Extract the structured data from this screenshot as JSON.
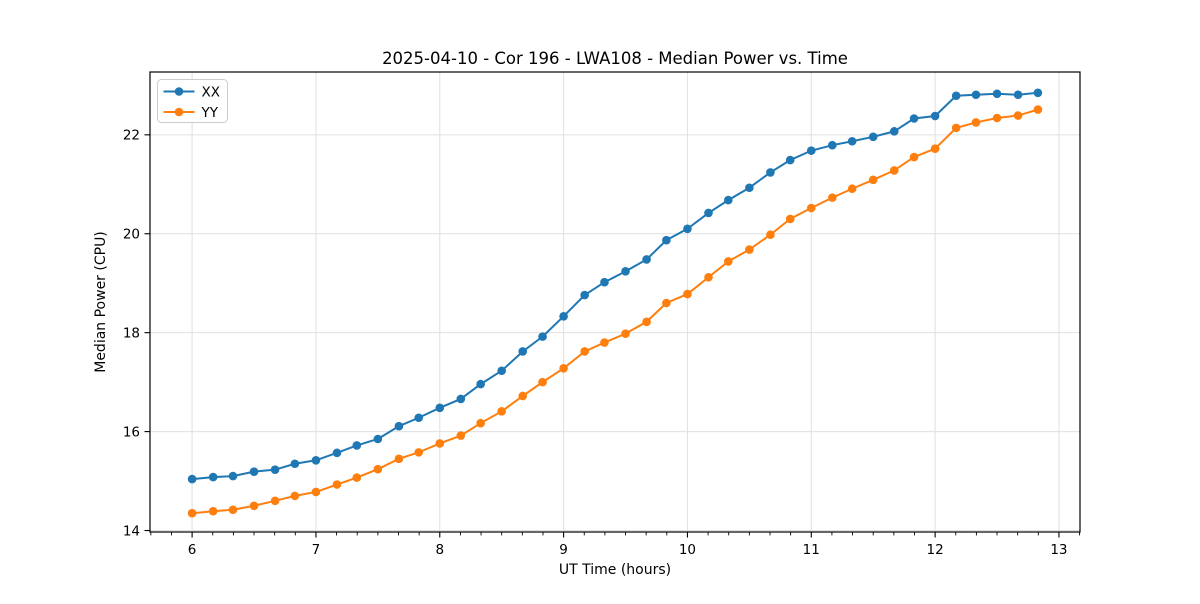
{
  "figure": {
    "background": "#ffffff"
  },
  "chart_data": {
    "type": "line",
    "title": "2025-04-10 - Cor 196 - LWA108 - Median Power vs. Time",
    "xlabel": "UT Time (hours)",
    "ylabel": "Median Power (CPU)",
    "xlim": [
      5.66,
      13.17
    ],
    "ylim": [
      13.97,
      23.27
    ],
    "x_ticks": [
      6,
      7,
      8,
      9,
      10,
      11,
      12,
      13
    ],
    "y_ticks": [
      14,
      16,
      18,
      20,
      22
    ],
    "x_minor_divisions": 6,
    "grid": true,
    "grid_color": "#e0e0e0",
    "spine_color": "#000000",
    "legend_position": "upper-left",
    "legend_border_color": "#cccccc",
    "marker": "circle",
    "x": [
      6.0,
      6.17,
      6.33,
      6.5,
      6.67,
      6.83,
      7.0,
      7.17,
      7.33,
      7.5,
      7.67,
      7.83,
      8.0,
      8.17,
      8.33,
      8.5,
      8.67,
      8.83,
      9.0,
      9.17,
      9.33,
      9.5,
      9.67,
      9.83,
      10.0,
      10.17,
      10.33,
      10.5,
      10.67,
      10.83,
      11.0,
      11.17,
      11.33,
      11.5,
      11.67,
      11.83,
      12.0,
      12.17,
      12.33,
      12.5,
      12.67,
      12.83
    ],
    "series": [
      {
        "name": "XX",
        "color": "#1f77b4",
        "values": [
          15.04,
          15.08,
          15.1,
          15.19,
          15.23,
          15.35,
          15.42,
          15.57,
          15.72,
          15.85,
          16.11,
          16.28,
          16.48,
          16.66,
          16.96,
          17.23,
          17.62,
          17.92,
          18.33,
          18.76,
          19.02,
          19.24,
          19.48,
          19.87,
          20.1,
          20.42,
          20.68,
          20.93,
          21.24,
          21.49,
          21.68,
          21.79,
          21.87,
          21.96,
          22.07,
          22.33,
          22.38,
          22.79,
          22.81,
          22.83,
          22.81,
          22.85
        ]
      },
      {
        "name": "YY",
        "color": "#ff7f0e",
        "values": [
          14.35,
          14.39,
          14.42,
          14.5,
          14.6,
          14.7,
          14.78,
          14.93,
          15.07,
          15.24,
          15.45,
          15.58,
          15.76,
          15.92,
          16.17,
          16.41,
          16.72,
          17.0,
          17.28,
          17.62,
          17.8,
          17.98,
          18.22,
          18.6,
          18.78,
          19.12,
          19.44,
          19.68,
          19.98,
          20.3,
          20.52,
          20.73,
          20.91,
          21.09,
          21.28,
          21.55,
          21.72,
          22.14,
          22.25,
          22.34,
          22.39,
          22.51
        ]
      }
    ]
  }
}
